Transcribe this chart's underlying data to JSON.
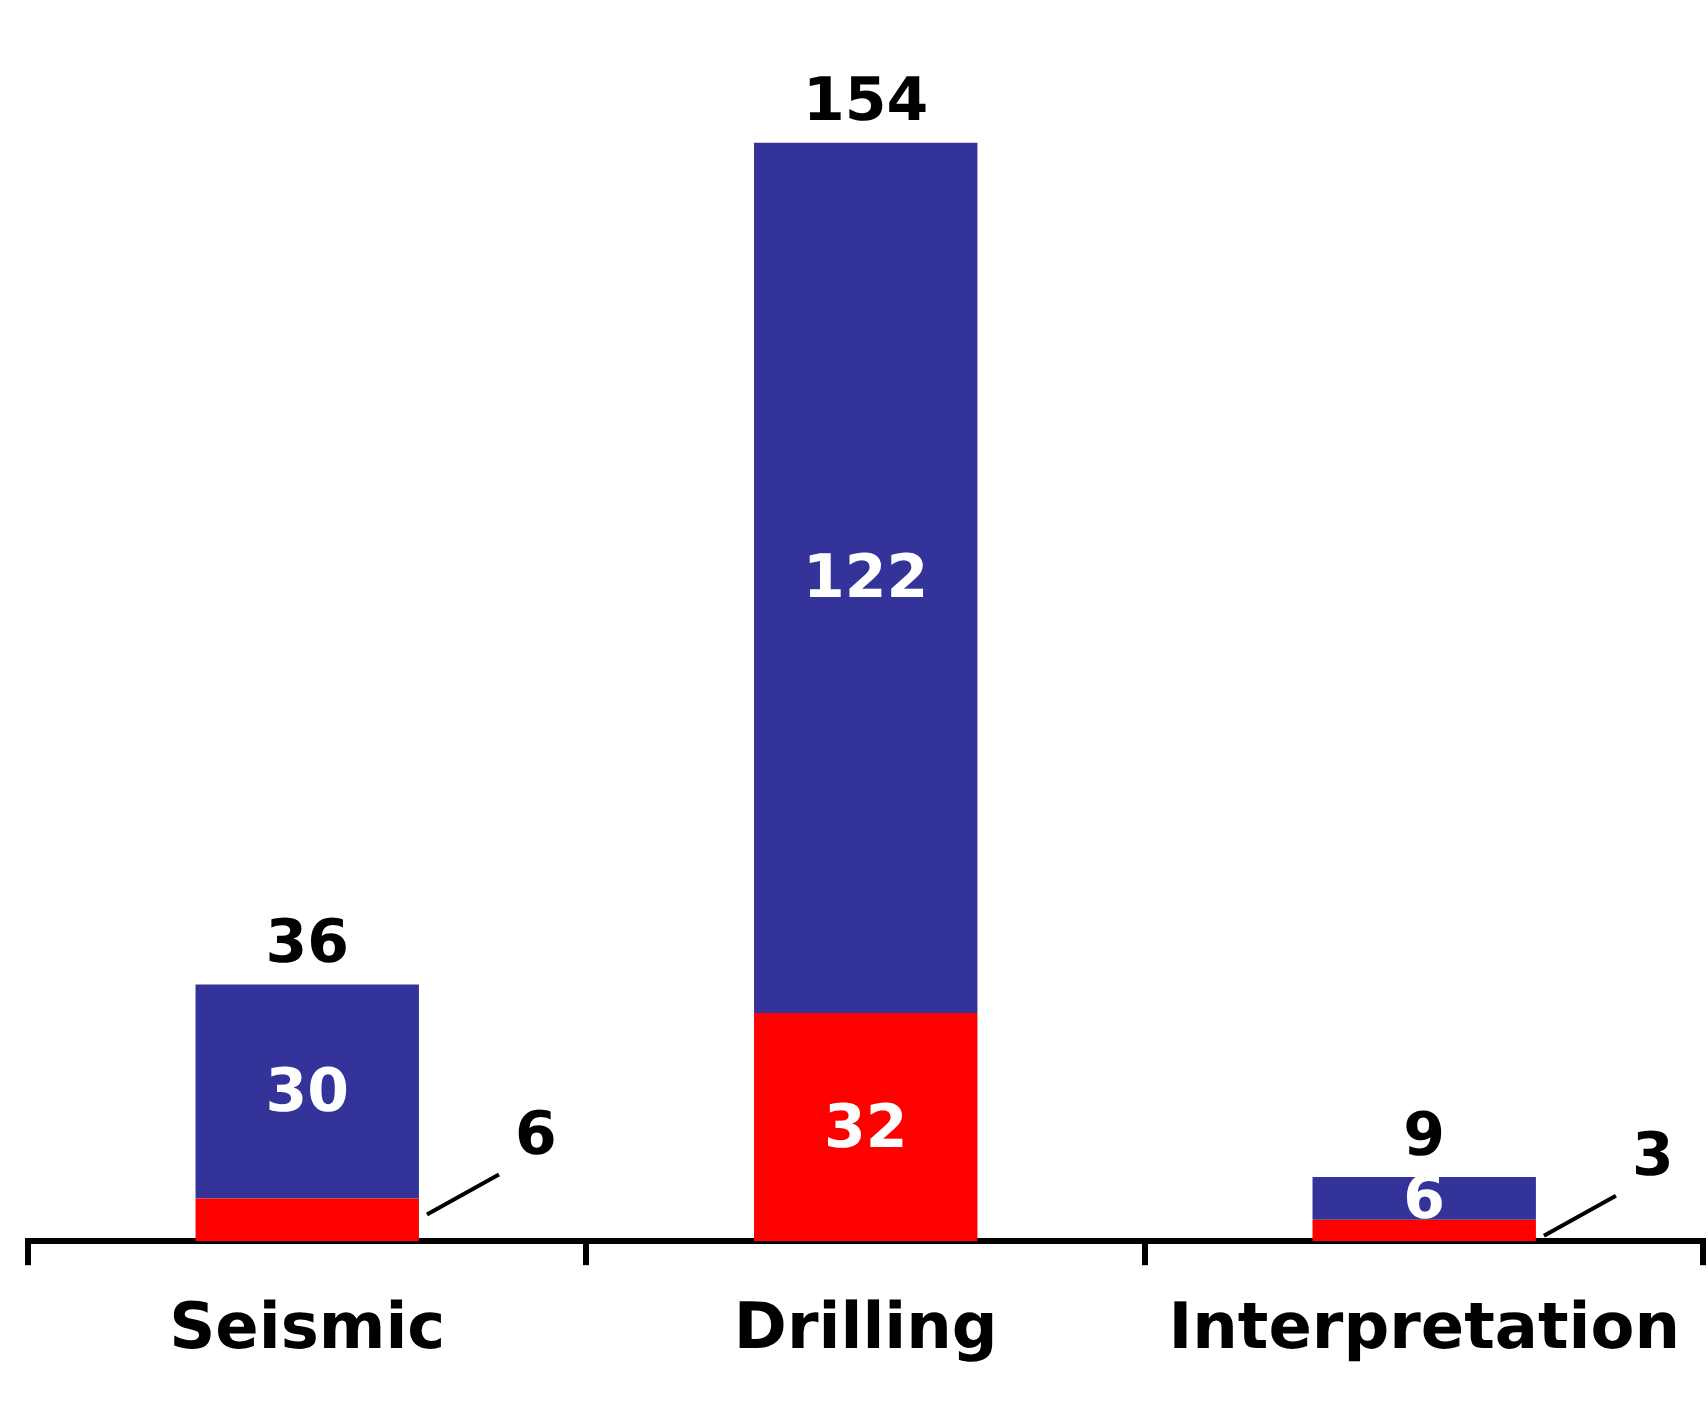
{
  "chart_data": {
    "type": "bar",
    "stacked": true,
    "categories": [
      "Seismic",
      "Drilling",
      "Interpretation"
    ],
    "series": [
      {
        "color": "#ff0000",
        "values": [
          6,
          32,
          3
        ]
      },
      {
        "color": "#333399",
        "values": [
          30,
          122,
          6
        ]
      }
    ],
    "data_labels": true,
    "totals": [
      "36",
      "154",
      "9"
    ],
    "grid": false,
    "legend": false
  }
}
